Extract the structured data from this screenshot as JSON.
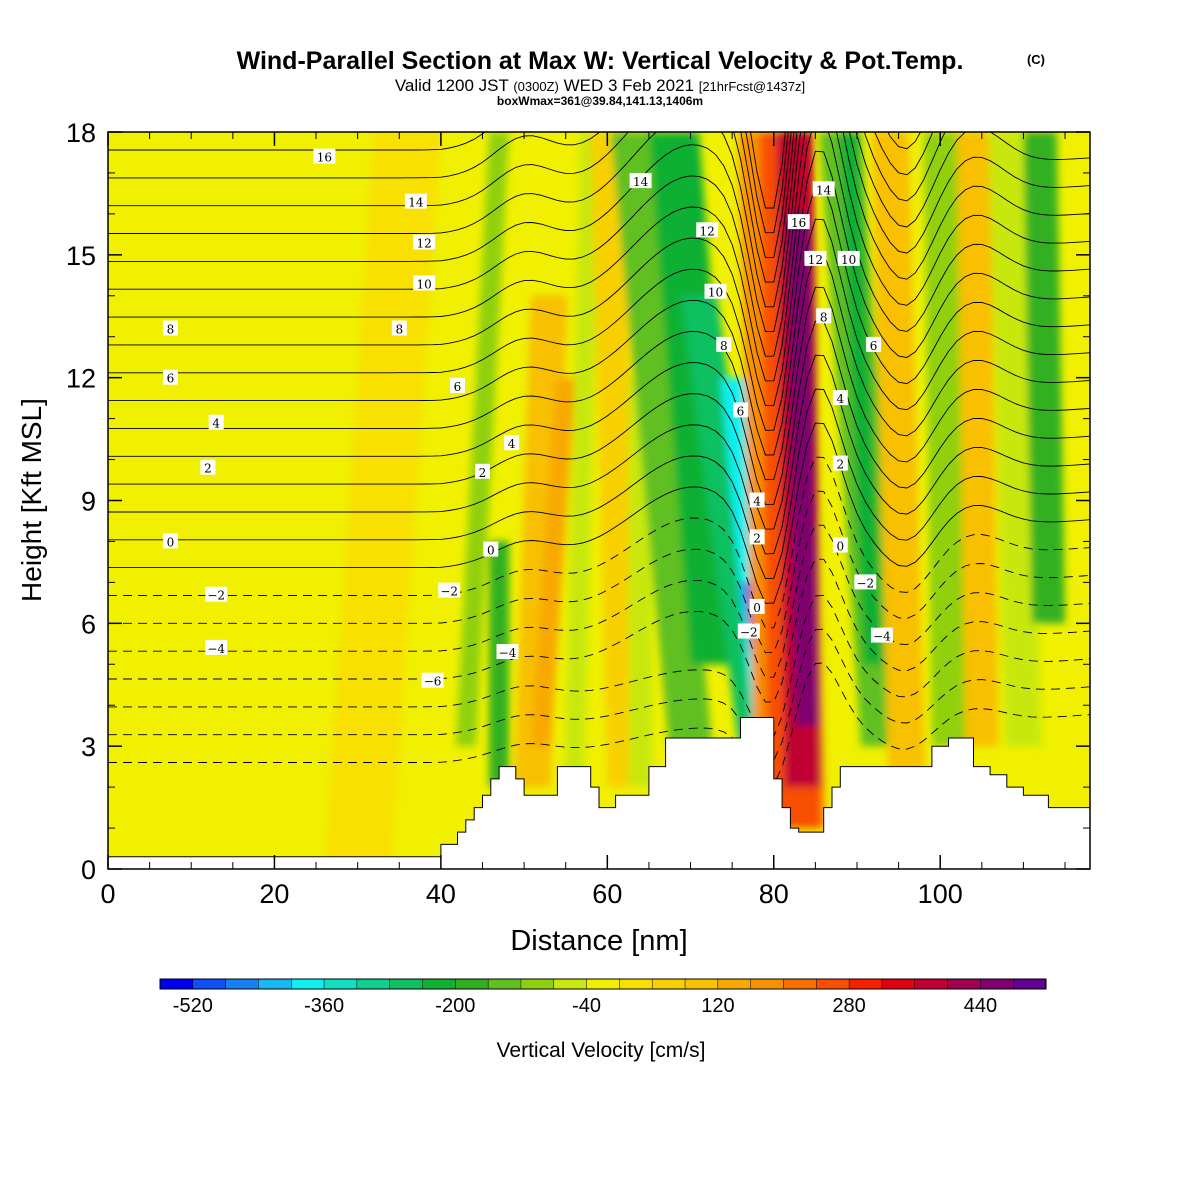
{
  "title": {
    "line1": "Wind-Parallel Section at Max W: Vertical Velocity & Pot.Temp.",
    "copyright": "(C)",
    "line2_a": "Valid 1200 JST",
    "line2_b": "(0300Z)",
    "line2_c": "WED 3 Feb 2021",
    "line2_d": "[21hrFcst@1437z]",
    "line3": "boxWmax=361@39.84,141.13,1406m"
  },
  "chart_data": {
    "type": "heatmap",
    "xlabel": "Distance [nm]",
    "ylabel": "Height [Kft MSL]",
    "xlim": [
      0,
      118
    ],
    "ylim": [
      0,
      18
    ],
    "x_ticks": [
      0,
      20,
      40,
      60,
      80,
      100
    ],
    "y_ticks": [
      0,
      3,
      6,
      9,
      12,
      15,
      18
    ],
    "x_tick_labels": [
      "0",
      "20",
      "40",
      "60",
      "80",
      "100"
    ],
    "y_tick_labels": [
      "0",
      "3",
      "6",
      "9",
      "12",
      "15",
      "18"
    ],
    "colorbar": {
      "label": "Vertical Velocity [cm/s]",
      "min": -560,
      "max": 520,
      "step": 40,
      "tick_values": [
        -520,
        -360,
        -200,
        -40,
        120,
        280,
        440
      ],
      "tick_labels": [
        "-520",
        "-360",
        "-200",
        "-40",
        "120",
        "280",
        "440"
      ],
      "colors": [
        "#0000f0",
        "#1050f5",
        "#1880f5",
        "#18b8f5",
        "#10f0f0",
        "#10e0c0",
        "#10d090",
        "#10c060",
        "#10b030",
        "#30b020",
        "#60c020",
        "#90d010",
        "#c8e810",
        "#f0f000",
        "#f8e000",
        "#f8d000",
        "#f8c000",
        "#f8a800",
        "#f89000",
        "#f87000",
        "#f85000",
        "#f82000",
        "#e00010",
        "#c00030",
        "#a00050",
        "#800070",
        "#600090"
      ]
    },
    "terrain_profile": {
      "x": [
        0,
        38,
        40,
        42,
        43,
        44,
        45,
        46,
        47,
        48,
        49,
        50,
        52,
        54,
        56,
        57,
        58,
        59,
        60,
        61,
        62,
        63,
        65,
        67,
        68,
        70,
        72,
        74,
        75,
        76,
        77,
        78,
        79,
        80,
        81,
        82,
        83,
        84,
        85,
        86,
        87,
        88,
        90,
        92,
        95,
        98,
        99,
        101,
        102,
        104,
        106,
        108,
        110,
        113,
        116,
        118
      ],
      "y": [
        0.3,
        0.3,
        0.6,
        0.9,
        1.2,
        1.5,
        1.8,
        2.2,
        2.5,
        2.5,
        2.2,
        1.8,
        1.8,
        2.5,
        2.5,
        2.5,
        2.0,
        1.5,
        1.5,
        1.8,
        1.8,
        1.8,
        2.5,
        3.2,
        3.2,
        3.2,
        3.2,
        3.2,
        3.2,
        3.7,
        3.7,
        3.7,
        3.7,
        2.2,
        1.5,
        1.0,
        0.9,
        0.9,
        0.9,
        1.5,
        2.0,
        2.5,
        2.5,
        2.5,
        2.5,
        2.5,
        3.0,
        3.2,
        3.2,
        2.5,
        2.3,
        2.0,
        1.8,
        1.5,
        1.5,
        1.2
      ]
    },
    "isentrope_labels_solid": [
      {
        "text": "16",
        "x": 26,
        "y": 17.4
      },
      {
        "text": "14",
        "x": 37,
        "y": 16.3
      },
      {
        "text": "12",
        "x": 38,
        "y": 15.3
      },
      {
        "text": "10",
        "x": 38,
        "y": 14.3
      },
      {
        "text": "8",
        "x": 7.5,
        "y": 13.2
      },
      {
        "text": "8",
        "x": 35,
        "y": 13.2
      },
      {
        "text": "6",
        "x": 7.5,
        "y": 12.0
      },
      {
        "text": "6",
        "x": 42,
        "y": 11.8
      },
      {
        "text": "4",
        "x": 13,
        "y": 10.9
      },
      {
        "text": "4",
        "x": 48.5,
        "y": 10.4
      },
      {
        "text": "2",
        "x": 12,
        "y": 9.8
      },
      {
        "text": "2",
        "x": 45,
        "y": 9.7
      },
      {
        "text": "0",
        "x": 7.5,
        "y": 8.0
      },
      {
        "text": "0",
        "x": 46,
        "y": 7.8
      },
      {
        "text": "14",
        "x": 64,
        "y": 16.8
      },
      {
        "text": "12",
        "x": 72,
        "y": 15.6
      },
      {
        "text": "10",
        "x": 73,
        "y": 14.1
      },
      {
        "text": "8",
        "x": 74,
        "y": 12.8
      },
      {
        "text": "6",
        "x": 76,
        "y": 11.2
      },
      {
        "text": "4",
        "x": 78,
        "y": 9.0
      },
      {
        "text": "2",
        "x": 78,
        "y": 8.1
      },
      {
        "text": "0",
        "x": 78,
        "y": 6.4
      },
      {
        "text": "16",
        "x": 83,
        "y": 15.8
      },
      {
        "text": "14",
        "x": 86,
        "y": 16.6
      },
      {
        "text": "12",
        "x": 85,
        "y": 14.9
      },
      {
        "text": "10",
        "x": 89,
        "y": 14.9
      },
      {
        "text": "8",
        "x": 86,
        "y": 13.5
      },
      {
        "text": "6",
        "x": 92,
        "y": 12.8
      },
      {
        "text": "4",
        "x": 88,
        "y": 11.5
      },
      {
        "text": "2",
        "x": 88,
        "y": 9.9
      },
      {
        "text": "0",
        "x": 88,
        "y": 7.9
      }
    ],
    "isentrope_labels_dashed": [
      {
        "text": "−2",
        "x": 13,
        "y": 6.7
      },
      {
        "text": "−2",
        "x": 41,
        "y": 6.8
      },
      {
        "text": "−4",
        "x": 13,
        "y": 5.4
      },
      {
        "text": "−4",
        "x": 48,
        "y": 5.3
      },
      {
        "text": "−6",
        "x": 39,
        "y": 4.6
      },
      {
        "text": "−2",
        "x": 77,
        "y": 5.8
      },
      {
        "text": "−2",
        "x": 91,
        "y": 7.0
      },
      {
        "text": "−4",
        "x": 93,
        "y": 5.7
      }
    ]
  }
}
